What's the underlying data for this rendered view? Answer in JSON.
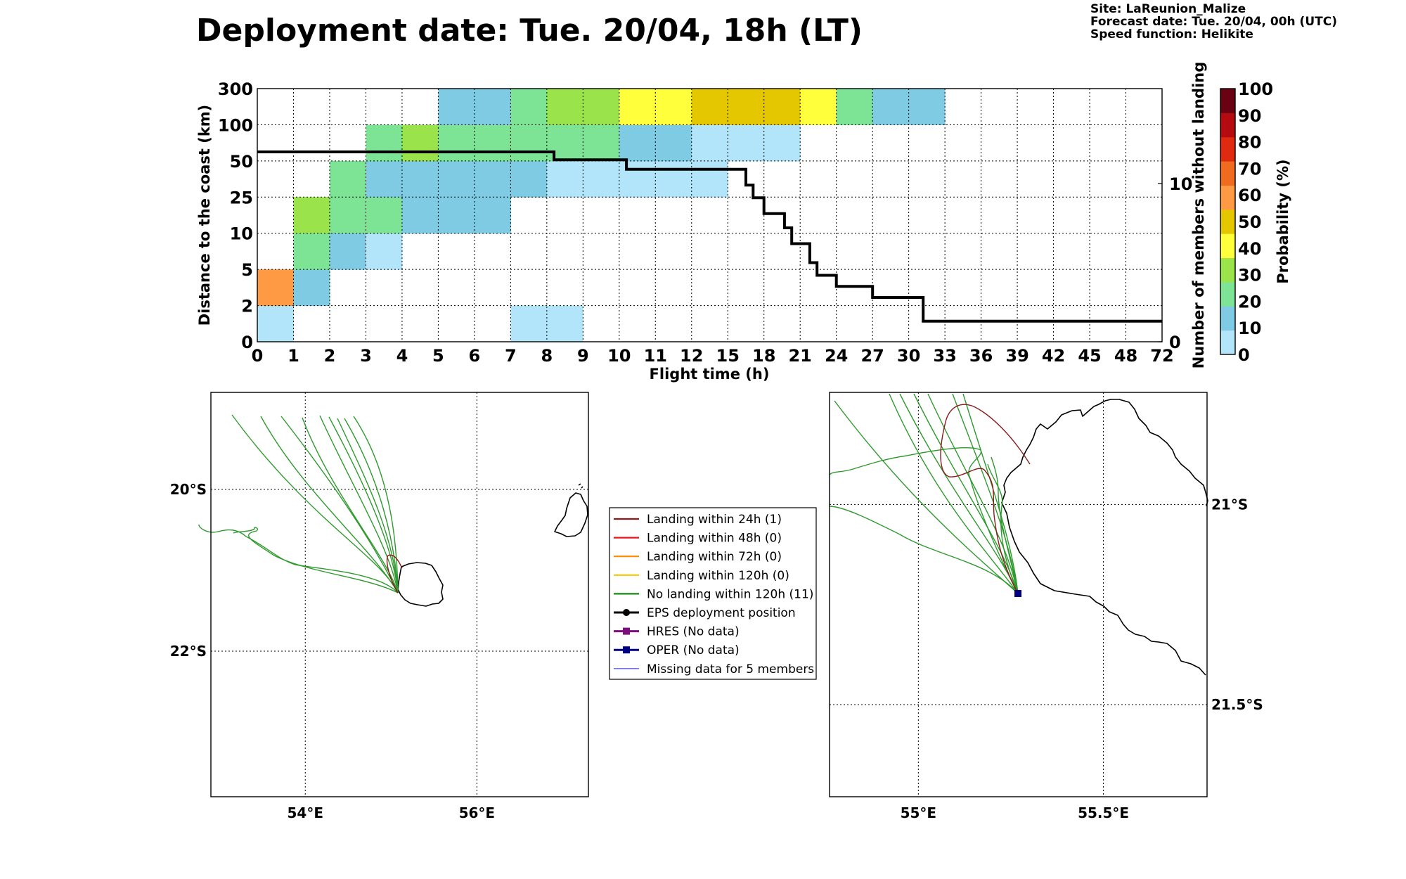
{
  "header": {
    "title": "Deployment date: Tue. 20/04, 18h (LT)",
    "site": "Site: LaReunion_Malize",
    "forecast": "Forecast date: Tue. 20/04, 00h (UTC)",
    "speed": "Speed function: Helikite"
  },
  "chart_data": [
    {
      "type": "heatmap",
      "xlabel": "Flight time (h)",
      "ylabel": "Distance to the coast (km)",
      "ylabel_right": "Number of members without landing",
      "x_bins": [
        "0",
        "1",
        "2",
        "3",
        "4",
        "5",
        "6",
        "7",
        "8",
        "9",
        "10",
        "11",
        "12",
        "15",
        "18",
        "21",
        "24",
        "27",
        "30",
        "33",
        "36",
        "39",
        "42",
        "45",
        "48",
        "72"
      ],
      "y_bins": [
        "0",
        "2",
        "5",
        "10",
        "25",
        "50",
        "100",
        "300"
      ],
      "right_ticks": [
        {
          "label": "0",
          "value": 0
        },
        {
          "label": "10",
          "value": 10
        }
      ],
      "right_ylim": [
        0,
        16
      ],
      "grid": true,
      "colorbar": {
        "label": "Probability (%)",
        "ticks": [
          "0",
          "10",
          "20",
          "30",
          "40",
          "50",
          "60",
          "70",
          "80",
          "90",
          "100"
        ],
        "colors": [
          "#b3e5fa",
          "#7ecbe3",
          "#7de395",
          "#9be34a",
          "#ffff3c",
          "#e5c700",
          "#ff9a44",
          "#f06a20",
          "#df2a10",
          "#b50b10",
          "#6a0214"
        ]
      },
      "cells": [
        {
          "x": 0,
          "y": 0,
          "p": 5
        },
        {
          "x": 0,
          "y": 1,
          "p": 65
        },
        {
          "x": 1,
          "y": 1,
          "p": 15
        },
        {
          "x": 1,
          "y": 2,
          "p": 25
        },
        {
          "x": 1,
          "y": 3,
          "p": 35
        },
        {
          "x": 2,
          "y": 2,
          "p": 15
        },
        {
          "x": 2,
          "y": 3,
          "p": 25
        },
        {
          "x": 2,
          "y": 4,
          "p": 25
        },
        {
          "x": 3,
          "y": 2,
          "p": 5
        },
        {
          "x": 3,
          "y": 3,
          "p": 25
        },
        {
          "x": 3,
          "y": 4,
          "p": 15
        },
        {
          "x": 3,
          "y": 5,
          "p": 25
        },
        {
          "x": 4,
          "y": 3,
          "p": 15
        },
        {
          "x": 4,
          "y": 4,
          "p": 15
        },
        {
          "x": 4,
          "y": 5,
          "p": 35
        },
        {
          "x": 5,
          "y": 3,
          "p": 15
        },
        {
          "x": 5,
          "y": 4,
          "p": 15
        },
        {
          "x": 5,
          "y": 5,
          "p": 25
        },
        {
          "x": 5,
          "y": 6,
          "p": 15
        },
        {
          "x": 6,
          "y": 3,
          "p": 15
        },
        {
          "x": 6,
          "y": 4,
          "p": 15
        },
        {
          "x": 6,
          "y": 5,
          "p": 25
        },
        {
          "x": 6,
          "y": 6,
          "p": 15
        },
        {
          "x": 7,
          "y": 0,
          "p": 5
        },
        {
          "x": 7,
          "y": 4,
          "p": 15
        },
        {
          "x": 7,
          "y": 5,
          "p": 25
        },
        {
          "x": 7,
          "y": 6,
          "p": 25
        },
        {
          "x": 8,
          "y": 0,
          "p": 5
        },
        {
          "x": 8,
          "y": 4,
          "p": 5
        },
        {
          "x": 8,
          "y": 5,
          "p": 25
        },
        {
          "x": 8,
          "y": 6,
          "p": 35
        },
        {
          "x": 9,
          "y": 4,
          "p": 5
        },
        {
          "x": 9,
          "y": 5,
          "p": 25
        },
        {
          "x": 9,
          "y": 6,
          "p": 35
        },
        {
          "x": 10,
          "y": 4,
          "p": 5
        },
        {
          "x": 10,
          "y": 5,
          "p": 15
        },
        {
          "x": 10,
          "y": 6,
          "p": 45
        },
        {
          "x": 11,
          "y": 4,
          "p": 5
        },
        {
          "x": 11,
          "y": 5,
          "p": 15
        },
        {
          "x": 11,
          "y": 6,
          "p": 45
        },
        {
          "x": 12,
          "y": 4,
          "p": 5
        },
        {
          "x": 12,
          "y": 5,
          "p": 5
        },
        {
          "x": 12,
          "y": 6,
          "p": 55
        },
        {
          "x": 13,
          "y": 5,
          "p": 5
        },
        {
          "x": 13,
          "y": 6,
          "p": 55
        },
        {
          "x": 14,
          "y": 5,
          "p": 5
        },
        {
          "x": 14,
          "y": 6,
          "p": 55
        },
        {
          "x": 15,
          "y": 6,
          "p": 45
        },
        {
          "x": 16,
          "y": 6,
          "p": 25
        },
        {
          "x": 17,
          "y": 6,
          "p": 15
        },
        {
          "x": 18,
          "y": 6,
          "p": 15
        }
      ],
      "members_without_landing": {
        "name": "Number of members without landing",
        "x": [
          0,
          8.2,
          8.2,
          10.2,
          10.2,
          16.5,
          16.5,
          17.1,
          17.1,
          18,
          18,
          19.7,
          19.7,
          20.3,
          20.3,
          21.8,
          21.8,
          22.4,
          22.4,
          24,
          24,
          27,
          27,
          31.2,
          31.2,
          72
        ],
        "values": [
          12,
          12,
          11.5,
          11.5,
          10.9,
          10.9,
          9.9,
          9.9,
          9.1,
          9.1,
          8.1,
          8.1,
          7.2,
          7.2,
          6.2,
          6.2,
          5.0,
          5.0,
          4.2,
          4.2,
          3.5,
          3.5,
          2.8,
          2.8,
          1.3,
          1.3
        ]
      }
    },
    {
      "type": "map",
      "name": "trajectory-map-regional",
      "lon_range": [
        52.9,
        57.3
      ],
      "lat_range": [
        -23.8,
        -18.8
      ],
      "lon_ticks": [
        {
          "label": "54°E",
          "value": 54
        },
        {
          "label": "56°E",
          "value": 56
        }
      ],
      "lat_ticks": [
        {
          "label": "20°S",
          "value": -20
        },
        {
          "label": "22°S",
          "value": -22
        }
      ],
      "grid": true
    },
    {
      "type": "map",
      "name": "trajectory-map-zoom",
      "lon_range": [
        54.76,
        55.78
      ],
      "lat_range": [
        -21.73,
        -20.72
      ],
      "lon_ticks": [
        {
          "label": "55°E",
          "value": 55
        },
        {
          "label": "55.5°E",
          "value": 55.5
        }
      ],
      "lat_ticks": [
        {
          "label": "21°S",
          "value": -21
        },
        {
          "label": "21.5°S",
          "value": -21.5
        }
      ],
      "grid": true
    }
  ],
  "legend": {
    "items": [
      {
        "label": "Landing within 24h (1)",
        "color": "#8b1a1a",
        "marker": "line"
      },
      {
        "label": "Landing within 48h (0)",
        "color": "#e41a1c",
        "marker": "line"
      },
      {
        "label": "Landing within 72h (0)",
        "color": "#ff8c00",
        "marker": "line"
      },
      {
        "label": "Landing within 120h (0)",
        "color": "#f5c800",
        "marker": "line"
      },
      {
        "label": "No landing within 120h (11)",
        "color": "#138a13",
        "marker": "line"
      },
      {
        "label": "EPS deployment position",
        "color": "#000000",
        "marker": "circle"
      },
      {
        "label": "HRES (No data)",
        "color": "#7b0f7b",
        "marker": "square"
      },
      {
        "label": "OPER (No data)",
        "color": "#000080",
        "marker": "square"
      },
      {
        "label": "Missing data for 5 members",
        "color": "#4040ff",
        "marker": "thin"
      }
    ]
  }
}
